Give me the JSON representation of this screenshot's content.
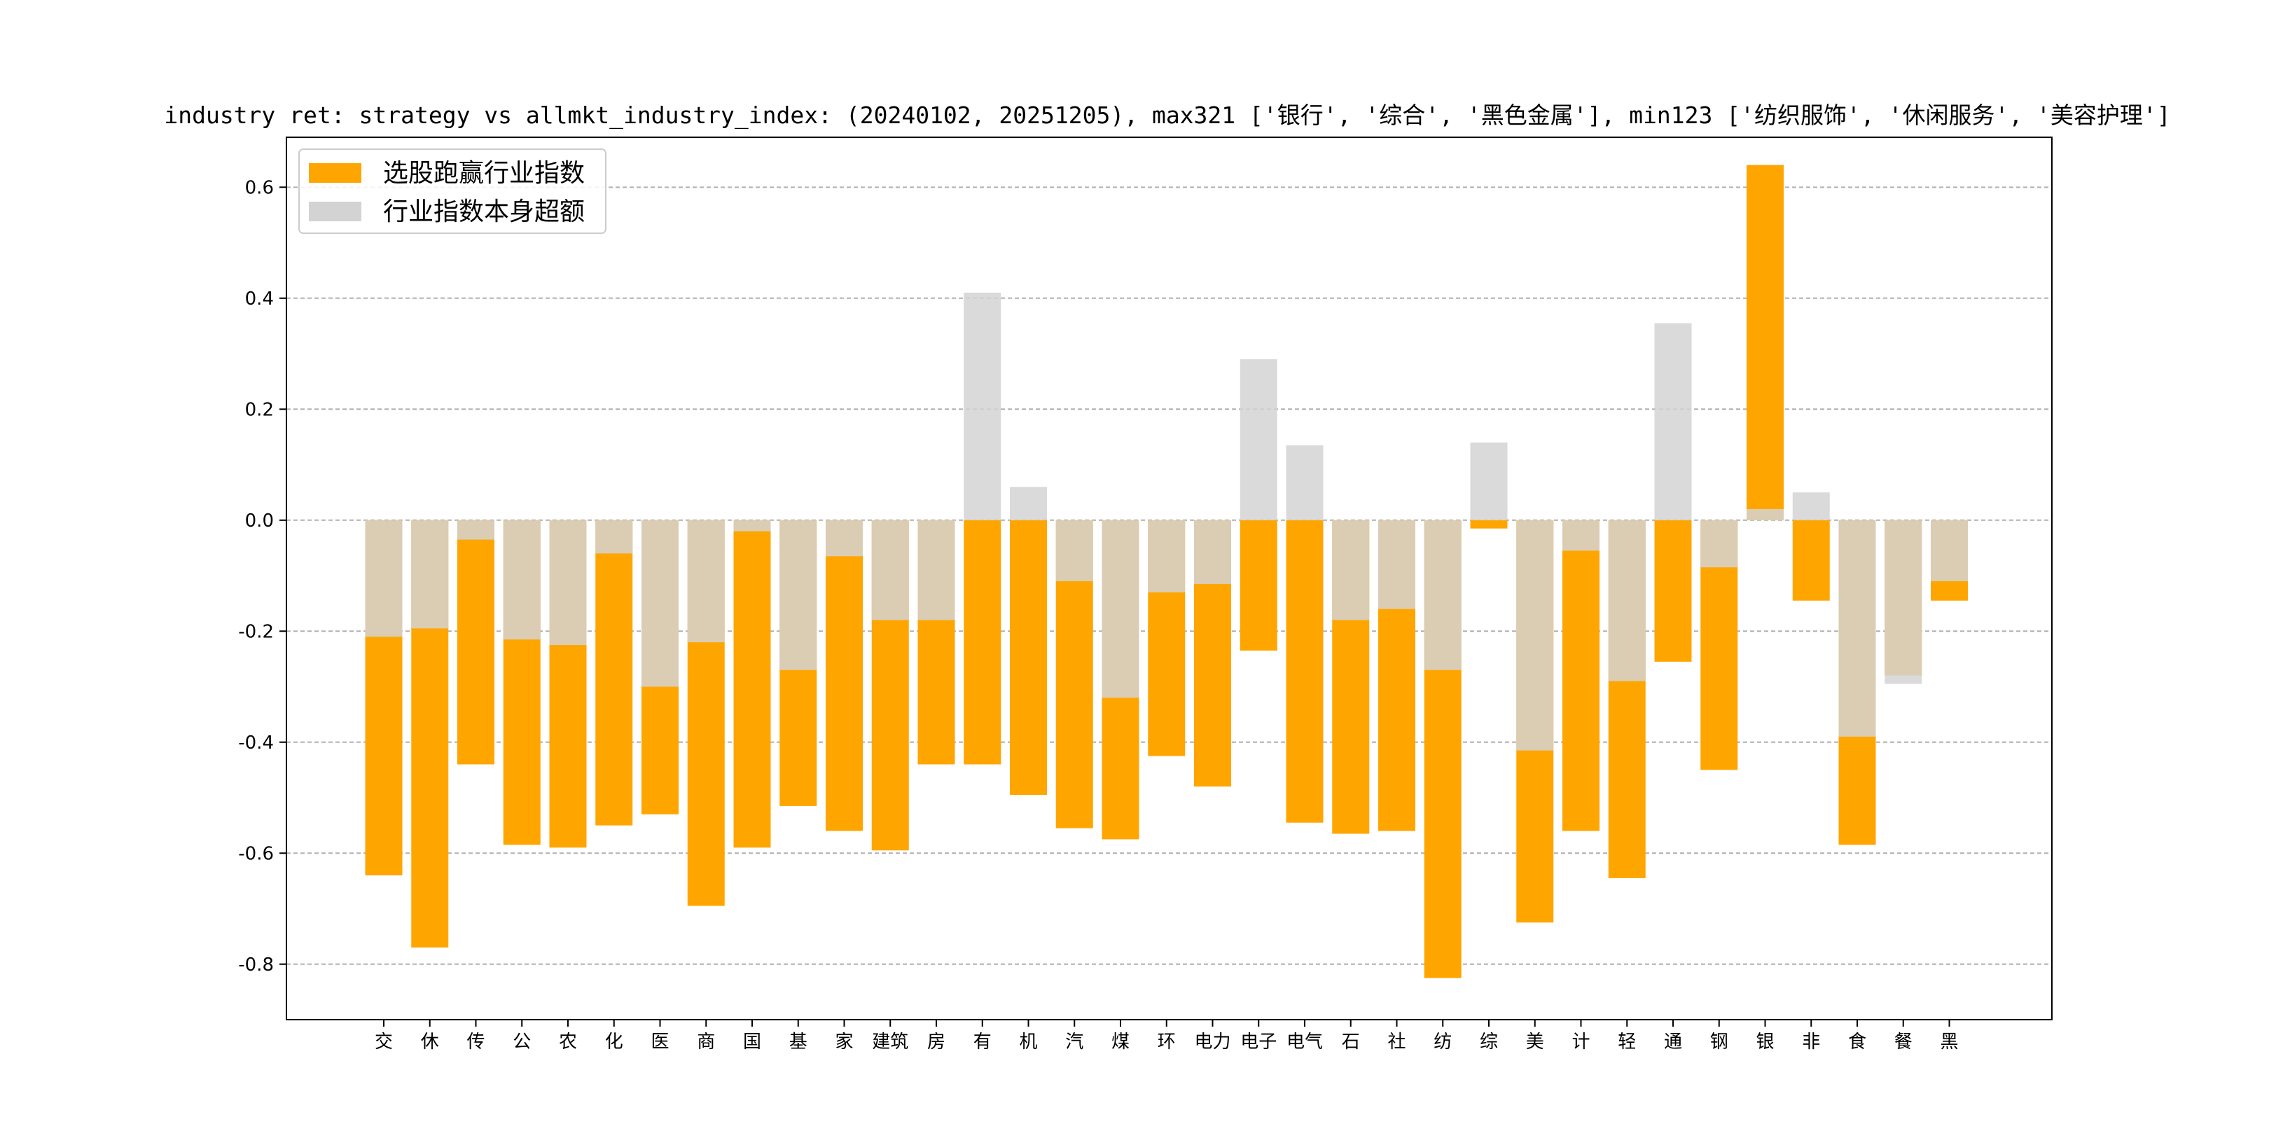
{
  "chart_data": {
    "type": "bar",
    "title": "industry ret: strategy vs allmkt_industry_index: (20240102, 20251205), max321 ['银行', '综合', '黑色金属'], min123 ['纺织服饰', '休闲服务', '美容护理']",
    "xlabel": "",
    "ylabel": "",
    "ylim": [
      -0.9,
      0.69
    ],
    "yticks": [
      -0.8,
      -0.6,
      -0.4,
      -0.2,
      0.0,
      0.2,
      0.4,
      0.6
    ],
    "ytick_labels": [
      "-0.8",
      "-0.6",
      "-0.4",
      "-0.2",
      "0.0",
      "0.2",
      "0.4",
      "0.6"
    ],
    "grid": "horizontal dashed",
    "legend_position": "top-left",
    "categories": [
      "交",
      "休",
      "传",
      "公",
      "农",
      "化",
      "医",
      "商",
      "国",
      "基",
      "家",
      "建筑",
      "房",
      "有",
      "机",
      "汽",
      "煤",
      "环",
      "电力",
      "电子",
      "电气",
      "石",
      "社",
      "纺",
      "综",
      "美",
      "计",
      "轻",
      "通",
      "钢",
      "银",
      "非",
      "食",
      "餐",
      "黑"
    ],
    "series": [
      {
        "name": "选股跑赢行业指数",
        "color": "#FFA500",
        "values": [
          -0.64,
          -0.77,
          -0.44,
          -0.585,
          -0.59,
          -0.55,
          -0.53,
          -0.695,
          -0.59,
          -0.515,
          -0.56,
          -0.595,
          -0.44,
          -0.44,
          -0.495,
          -0.555,
          -0.575,
          -0.425,
          -0.48,
          -0.235,
          -0.545,
          -0.565,
          -0.56,
          -0.825,
          -0.015,
          -0.725,
          -0.56,
          -0.645,
          -0.255,
          -0.45,
          0.64,
          -0.145,
          -0.585,
          -0.28,
          -0.145
        ]
      },
      {
        "name": "行业指数本身超额",
        "color": "#D3D3D3",
        "values": [
          -0.21,
          -0.195,
          -0.035,
          -0.215,
          -0.225,
          -0.06,
          -0.3,
          -0.22,
          -0.02,
          -0.27,
          -0.065,
          -0.18,
          -0.18,
          0.41,
          0.06,
          -0.11,
          -0.32,
          -0.13,
          -0.115,
          0.29,
          0.135,
          -0.18,
          -0.16,
          -0.27,
          0.14,
          -0.415,
          -0.055,
          -0.29,
          0.355,
          -0.085,
          0.02,
          0.05,
          -0.39,
          -0.295,
          -0.11
        ]
      }
    ]
  }
}
